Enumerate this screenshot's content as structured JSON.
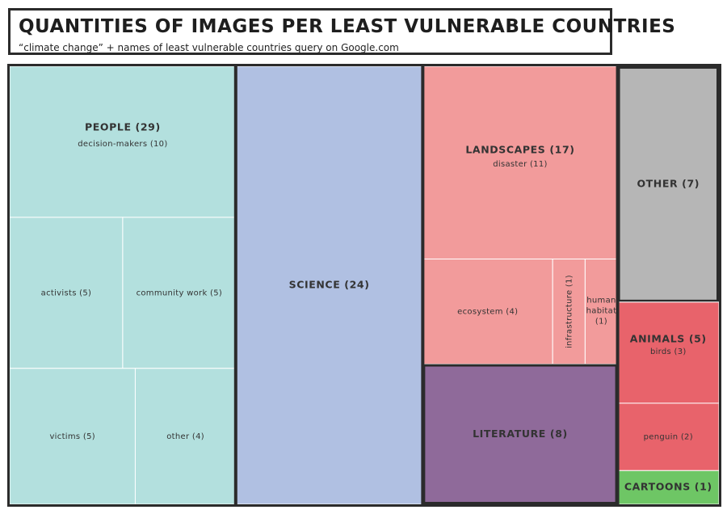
{
  "header": {
    "title": "QUANTITIES OF IMAGES PER LEAST VULNERABLE COUNTRIES",
    "subtitle": "“climate change” + names of least vulnerable countries  query on Google.com"
  },
  "chart_data": {
    "type": "treemap",
    "categories": [
      {
        "name": "PEOPLE",
        "value": 29,
        "label": "PEOPLE (29)",
        "color": "#b3e0de",
        "children": [
          {
            "name": "decision-makers",
            "value": 10,
            "label": "decision-makers (10)"
          },
          {
            "name": "activists",
            "value": 5,
            "label": "activists (5)"
          },
          {
            "name": "community work",
            "value": 5,
            "label": "community work (5)"
          },
          {
            "name": "victims",
            "value": 5,
            "label": "victims (5)"
          },
          {
            "name": "other",
            "value": 4,
            "label": "other (4)"
          }
        ]
      },
      {
        "name": "SCIENCE",
        "value": 24,
        "label": "SCIENCE (24)",
        "color": "#b0c0e2",
        "children": []
      },
      {
        "name": "LANDSCAPES",
        "value": 17,
        "label": "LANDSCAPES (17)",
        "color": "#f29b9b",
        "children": [
          {
            "name": "disaster",
            "value": 11,
            "label": "disaster (11)"
          },
          {
            "name": "ecosystem",
            "value": 4,
            "label": "ecosystem (4)"
          },
          {
            "name": "infrastructure",
            "value": 1,
            "label": "infrastructure (1)"
          },
          {
            "name": "human habitat",
            "value": 1,
            "label_lines": [
              "human",
              "habitat",
              "(1)"
            ]
          }
        ]
      },
      {
        "name": "LITERATURE",
        "value": 8,
        "label": "LITERATURE (8)",
        "color": "#8f6a9a",
        "children": []
      },
      {
        "name": "OTHER",
        "value": 7,
        "label": "OTHER (7)",
        "color": "#b6b6b6",
        "children": []
      },
      {
        "name": "ANIMALS",
        "value": 5,
        "label": "ANIMALS (5)",
        "color": "#e8636b",
        "children": [
          {
            "name": "birds",
            "value": 3,
            "label": "birds (3)"
          },
          {
            "name": "penguin",
            "value": 2,
            "label": "penguin (2)"
          }
        ]
      },
      {
        "name": "CARTOONS",
        "value": 1,
        "label": "CARTOONS (1)",
        "color": "#6ec665",
        "children": []
      }
    ],
    "colors": {
      "border": "#2b2b2b",
      "divider": "#ffffff"
    }
  }
}
